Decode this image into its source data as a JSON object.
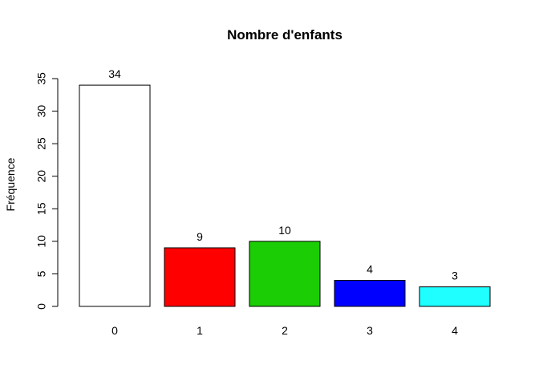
{
  "chart_data": {
    "type": "bar",
    "title": "Nombre d'enfants",
    "xlabel": "",
    "ylabel": "Fréquence",
    "categories": [
      "0",
      "1",
      "2",
      "3",
      "4"
    ],
    "values": [
      34,
      9,
      10,
      4,
      3
    ],
    "value_labels": [
      "34",
      "9",
      "10",
      "4",
      "3"
    ],
    "colors": [
      "#ffffff",
      "#ff0000",
      "#1bcd04",
      "#0000ff",
      "#1fffff"
    ],
    "ylim": [
      0,
      35
    ],
    "yticks": [
      0,
      5,
      10,
      15,
      20,
      25,
      30,
      35
    ],
    "grid": false,
    "legend": "none"
  }
}
